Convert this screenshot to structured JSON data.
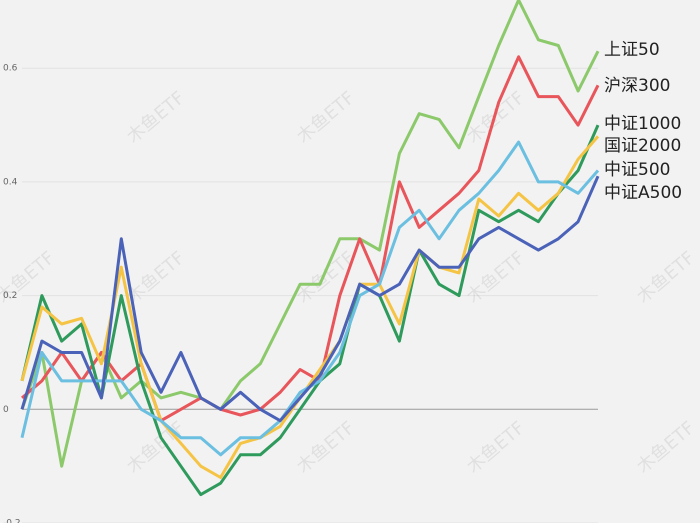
{
  "watermark": "木鱼ETF",
  "chart_data": {
    "type": "line",
    "ylim": [
      -0.2,
      0.72
    ],
    "yticks": [
      -0.2,
      0,
      0.2,
      0.4,
      0.6
    ],
    "grid": true,
    "series": [
      {
        "name": "上证50",
        "color": "#8cc96b",
        "values": [
          0,
          0.1,
          -0.1,
          0.05,
          0.1,
          0.02,
          0.05,
          0.02,
          0.03,
          0.02,
          0.0,
          0.05,
          0.08,
          0.15,
          0.22,
          0.22,
          0.3,
          0.3,
          0.28,
          0.45,
          0.52,
          0.51,
          0.46,
          0.55,
          0.64,
          0.72,
          0.65,
          0.64,
          0.56,
          0.63
        ]
      },
      {
        "name": "沪深300",
        "color": "#e8555a",
        "values": [
          0.02,
          0.05,
          0.1,
          0.05,
          0.1,
          0.05,
          0.08,
          -0.02,
          0.0,
          0.02,
          0.0,
          -0.01,
          0.0,
          0.03,
          0.07,
          0.05,
          0.2,
          0.3,
          0.22,
          0.4,
          0.32,
          0.35,
          0.38,
          0.42,
          0.54,
          0.62,
          0.55,
          0.55,
          0.5,
          0.57
        ]
      },
      {
        "name": "中证1000",
        "color": "#2e9a5c",
        "values": [
          0.05,
          0.2,
          0.12,
          0.15,
          0.02,
          0.2,
          0.05,
          -0.05,
          -0.1,
          -0.15,
          -0.13,
          -0.08,
          -0.08,
          -0.05,
          0.0,
          0.05,
          0.08,
          0.22,
          0.2,
          0.12,
          0.28,
          0.22,
          0.2,
          0.35,
          0.33,
          0.35,
          0.33,
          0.38,
          0.42,
          0.5
        ]
      },
      {
        "name": "国证2000",
        "color": "#f5c445",
        "values": [
          0.05,
          0.18,
          0.15,
          0.16,
          0.08,
          0.25,
          0.08,
          -0.02,
          -0.06,
          -0.1,
          -0.12,
          -0.06,
          -0.05,
          -0.03,
          0.02,
          0.07,
          0.12,
          0.22,
          0.22,
          0.15,
          0.28,
          0.25,
          0.24,
          0.37,
          0.34,
          0.38,
          0.35,
          0.38,
          0.44,
          0.48
        ]
      },
      {
        "name": "中证500",
        "color": "#6bbfe0",
        "values": [
          -0.05,
          0.1,
          0.05,
          0.05,
          0.05,
          0.05,
          0.0,
          -0.02,
          -0.05,
          -0.05,
          -0.08,
          -0.05,
          -0.05,
          -0.02,
          0.03,
          0.05,
          0.1,
          0.2,
          0.22,
          0.32,
          0.35,
          0.3,
          0.35,
          0.38,
          0.42,
          0.47,
          0.4,
          0.4,
          0.38,
          0.42
        ]
      },
      {
        "name": "中证A500",
        "color": "#4a62b8",
        "values": [
          0.0,
          0.12,
          0.1,
          0.1,
          0.02,
          0.3,
          0.1,
          0.03,
          0.1,
          0.02,
          0.0,
          0.03,
          0.0,
          -0.02,
          0.02,
          0.06,
          0.12,
          0.22,
          0.2,
          0.22,
          0.28,
          0.25,
          0.25,
          0.3,
          0.32,
          0.3,
          0.28,
          0.3,
          0.33,
          0.41
        ]
      }
    ]
  }
}
